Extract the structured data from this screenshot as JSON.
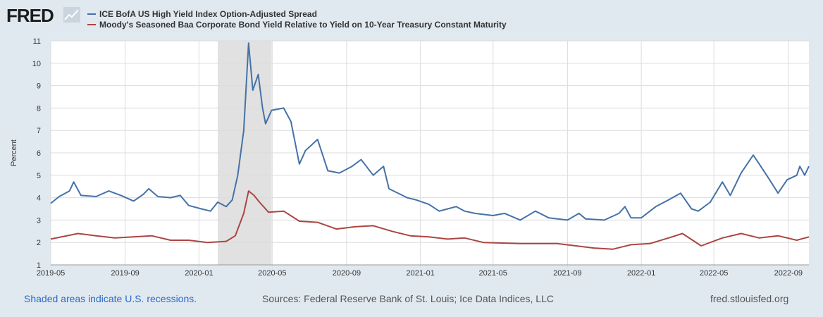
{
  "header": {
    "logo_text": "FRED"
  },
  "colors": {
    "series1": "#4572a7",
    "series2": "#aa4643",
    "recession": "#e1e1e1",
    "grid": "#dcdcdc"
  },
  "footer": {
    "recession_note": "Shaded areas indicate U.S. recessions.",
    "sources": "Sources: Federal Reserve Bank of St. Louis; Ice Data Indices, LLC",
    "site": "fred.stlouisfed.org"
  },
  "chart_data": {
    "type": "line",
    "ylabel": "Percent",
    "ylim": [
      1,
      11
    ],
    "yticks": [
      1,
      2,
      3,
      4,
      5,
      6,
      7,
      8,
      9,
      10,
      11
    ],
    "xlim": [
      "2019-05-01",
      "2022-10-05"
    ],
    "xticks": [
      "2019-05",
      "2019-09",
      "2020-01",
      "2020-05",
      "2020-09",
      "2021-01",
      "2021-05",
      "2021-09",
      "2022-01",
      "2022-05",
      "2022-09"
    ],
    "recessions": [
      {
        "start": "2020-02-01",
        "end": "2020-04-30"
      }
    ],
    "series": [
      {
        "name": "ICE BofA US High Yield Index Option-Adjusted Spread",
        "points": [
          [
            "2019-05-01",
            3.75
          ],
          [
            "2019-05-15",
            4.05
          ],
          [
            "2019-06-01",
            4.3
          ],
          [
            "2019-06-08",
            4.7
          ],
          [
            "2019-06-20",
            4.1
          ],
          [
            "2019-07-15",
            4.05
          ],
          [
            "2019-08-05",
            4.3
          ],
          [
            "2019-08-25",
            4.1
          ],
          [
            "2019-09-15",
            3.85
          ],
          [
            "2019-10-01",
            4.15
          ],
          [
            "2019-10-10",
            4.4
          ],
          [
            "2019-10-25",
            4.05
          ],
          [
            "2019-11-15",
            4.0
          ],
          [
            "2019-12-01",
            4.1
          ],
          [
            "2019-12-15",
            3.65
          ],
          [
            "2020-01-05",
            3.5
          ],
          [
            "2020-01-20",
            3.4
          ],
          [
            "2020-02-01",
            3.8
          ],
          [
            "2020-02-15",
            3.6
          ],
          [
            "2020-02-25",
            3.9
          ],
          [
            "2020-03-05",
            5.0
          ],
          [
            "2020-03-15",
            7.0
          ],
          [
            "2020-03-23",
            10.9
          ],
          [
            "2020-03-30",
            8.8
          ],
          [
            "2020-04-08",
            9.5
          ],
          [
            "2020-04-15",
            8.0
          ],
          [
            "2020-04-20",
            7.3
          ],
          [
            "2020-04-30",
            7.9
          ],
          [
            "2020-05-20",
            8.0
          ],
          [
            "2020-06-01",
            7.4
          ],
          [
            "2020-06-15",
            5.5
          ],
          [
            "2020-06-25",
            6.1
          ],
          [
            "2020-07-15",
            6.6
          ],
          [
            "2020-08-01",
            5.2
          ],
          [
            "2020-08-20",
            5.1
          ],
          [
            "2020-09-10",
            5.4
          ],
          [
            "2020-09-25",
            5.7
          ],
          [
            "2020-10-15",
            5.0
          ],
          [
            "2020-11-01",
            5.4
          ],
          [
            "2020-11-10",
            4.4
          ],
          [
            "2020-12-10",
            4.0
          ],
          [
            "2020-12-25",
            3.9
          ],
          [
            "2021-01-15",
            3.7
          ],
          [
            "2021-02-01",
            3.4
          ],
          [
            "2021-02-15",
            3.5
          ],
          [
            "2021-03-01",
            3.6
          ],
          [
            "2021-03-15",
            3.4
          ],
          [
            "2021-04-01",
            3.3
          ],
          [
            "2021-05-01",
            3.2
          ],
          [
            "2021-05-20",
            3.3
          ],
          [
            "2021-06-15",
            3.0
          ],
          [
            "2021-07-10",
            3.4
          ],
          [
            "2021-08-01",
            3.1
          ],
          [
            "2021-09-01",
            3.0
          ],
          [
            "2021-09-20",
            3.3
          ],
          [
            "2021-10-01",
            3.05
          ],
          [
            "2021-11-01",
            3.0
          ],
          [
            "2021-11-25",
            3.3
          ],
          [
            "2021-12-05",
            3.6
          ],
          [
            "2021-12-15",
            3.1
          ],
          [
            "2022-01-01",
            3.1
          ],
          [
            "2022-01-25",
            3.6
          ],
          [
            "2022-02-15",
            3.9
          ],
          [
            "2022-03-07",
            4.2
          ],
          [
            "2022-03-25",
            3.5
          ],
          [
            "2022-04-05",
            3.4
          ],
          [
            "2022-04-25",
            3.8
          ],
          [
            "2022-05-15",
            4.7
          ],
          [
            "2022-05-28",
            4.1
          ],
          [
            "2022-06-15",
            5.1
          ],
          [
            "2022-07-05",
            5.9
          ],
          [
            "2022-07-15",
            5.5
          ],
          [
            "2022-08-01",
            4.8
          ],
          [
            "2022-08-15",
            4.2
          ],
          [
            "2022-08-30",
            4.8
          ],
          [
            "2022-09-15",
            5.0
          ],
          [
            "2022-09-20",
            5.4
          ],
          [
            "2022-09-28",
            5.0
          ],
          [
            "2022-10-05",
            5.4
          ]
        ]
      },
      {
        "name": "Moody's Seasoned Baa Corporate Bond Yield Relative to Yield on 10-Year Treasury Constant Maturity",
        "points": [
          [
            "2019-05-01",
            2.15
          ],
          [
            "2019-06-15",
            2.4
          ],
          [
            "2019-07-15",
            2.3
          ],
          [
            "2019-08-15",
            2.2
          ],
          [
            "2019-09-15",
            2.25
          ],
          [
            "2019-10-15",
            2.3
          ],
          [
            "2019-11-15",
            2.1
          ],
          [
            "2019-12-15",
            2.1
          ],
          [
            "2020-01-15",
            2.0
          ],
          [
            "2020-02-15",
            2.05
          ],
          [
            "2020-03-01",
            2.3
          ],
          [
            "2020-03-15",
            3.3
          ],
          [
            "2020-03-23",
            4.3
          ],
          [
            "2020-04-01",
            4.1
          ],
          [
            "2020-04-10",
            3.8
          ],
          [
            "2020-04-25",
            3.35
          ],
          [
            "2020-05-20",
            3.4
          ],
          [
            "2020-06-15",
            2.95
          ],
          [
            "2020-07-15",
            2.9
          ],
          [
            "2020-08-15",
            2.6
          ],
          [
            "2020-09-15",
            2.7
          ],
          [
            "2020-10-15",
            2.75
          ],
          [
            "2020-11-15",
            2.5
          ],
          [
            "2020-12-15",
            2.3
          ],
          [
            "2021-01-15",
            2.25
          ],
          [
            "2021-02-15",
            2.15
          ],
          [
            "2021-03-15",
            2.2
          ],
          [
            "2021-04-15",
            2.0
          ],
          [
            "2021-06-15",
            1.95
          ],
          [
            "2021-08-15",
            1.95
          ],
          [
            "2021-09-15",
            1.85
          ],
          [
            "2021-10-15",
            1.75
          ],
          [
            "2021-11-15",
            1.7
          ],
          [
            "2021-12-15",
            1.9
          ],
          [
            "2022-01-15",
            1.95
          ],
          [
            "2022-02-15",
            2.2
          ],
          [
            "2022-03-10",
            2.4
          ],
          [
            "2022-04-10",
            1.85
          ],
          [
            "2022-05-15",
            2.2
          ],
          [
            "2022-06-15",
            2.4
          ],
          [
            "2022-07-15",
            2.2
          ],
          [
            "2022-08-15",
            2.3
          ],
          [
            "2022-09-15",
            2.1
          ],
          [
            "2022-10-05",
            2.25
          ]
        ]
      }
    ]
  }
}
